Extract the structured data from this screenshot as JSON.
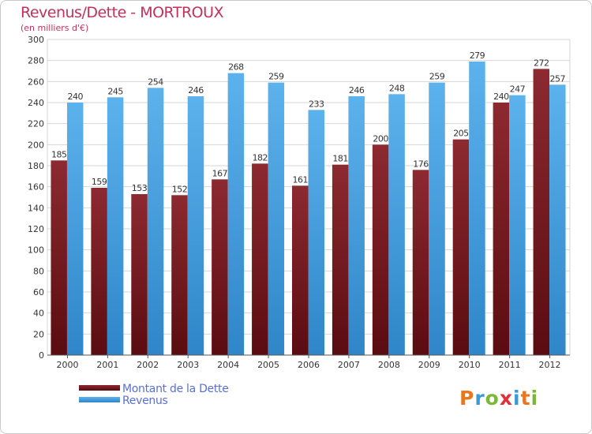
{
  "chart_data": {
    "type": "bar",
    "title": "Revenus/Dette - MORTROUX",
    "subtitle": "(en milliers d'€)",
    "categories": [
      "2000",
      "2001",
      "2002",
      "2003",
      "2004",
      "2005",
      "2006",
      "2007",
      "2008",
      "2009",
      "2010",
      "2011",
      "2012"
    ],
    "series": [
      {
        "name": "Montant de la Dette",
        "color": "#7a1c22",
        "values": [
          185,
          159,
          153,
          152,
          167,
          182,
          161,
          181,
          200,
          176,
          205,
          240,
          272
        ]
      },
      {
        "name": "Revenus",
        "color": "#4aa3e0",
        "values": [
          240,
          245,
          254,
          246,
          268,
          259,
          233,
          246,
          248,
          259,
          279,
          247,
          257
        ]
      }
    ],
    "ylim": [
      0,
      300
    ],
    "yticks": [
      0,
      20,
      40,
      60,
      80,
      100,
      120,
      140,
      160,
      180,
      200,
      220,
      240,
      260,
      280,
      300
    ],
    "grid": true,
    "xlabel": "",
    "ylabel": ""
  },
  "legend": {
    "items": [
      {
        "label": "Montant de la Dette",
        "color": "#7a1c22"
      },
      {
        "label": "Revenus",
        "color": "#4aa3e0"
      }
    ]
  },
  "logo": {
    "letters": [
      {
        "ch": "P",
        "color": "#e87722"
      },
      {
        "ch": "r",
        "color": "#3a9ad9"
      },
      {
        "ch": "o",
        "color": "#7bb83a"
      },
      {
        "ch": "x",
        "color": "#e0303a"
      },
      {
        "ch": "i",
        "color": "#3a9ad9"
      },
      {
        "ch": "t",
        "color": "#e87722"
      },
      {
        "ch": "i",
        "color": "#7bb83a"
      }
    ]
  }
}
